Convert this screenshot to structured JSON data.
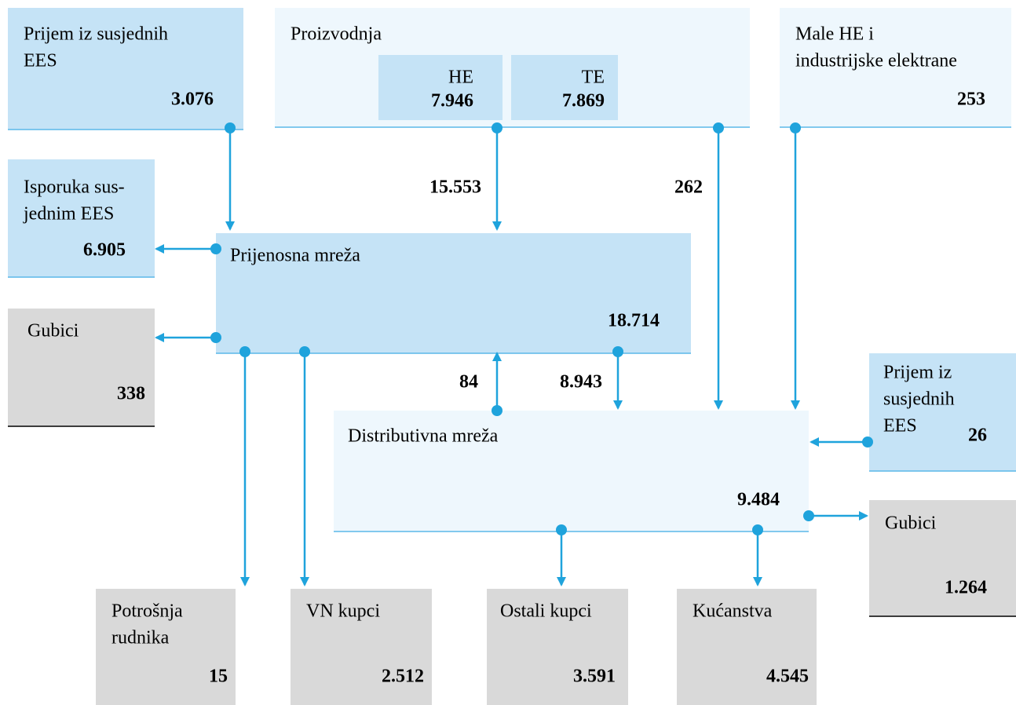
{
  "nodes": [
    {
      "lines": [
        "Prijem iz susjednih",
        "EES"
      ],
      "value": "3.076"
    },
    {
      "lines": [
        "Proizvodnja"
      ]
    },
    {
      "lines": [
        "HE"
      ],
      "value": "7.946"
    },
    {
      "lines": [
        "TE"
      ],
      "value": "7.869"
    },
    {
      "lines": [
        "Male HE i",
        "industrijske elektrane"
      ],
      "value": "253"
    },
    {
      "lines": [
        "Isporuka sus-",
        "jednim EES"
      ],
      "value": "6.905"
    },
    {
      "lines": [
        "Prijenosna mreža"
      ],
      "value": "18.714"
    },
    {
      "lines": [
        "Gubici"
      ],
      "value": "338"
    },
    {
      "lines": [
        "Distributivna mreža"
      ],
      "value": "9.484"
    },
    {
      "lines": [
        "Prijem iz",
        "susjednih",
        "EES"
      ],
      "value": "26"
    },
    {
      "lines": [
        "Gubici"
      ],
      "value": "1.264"
    },
    {
      "lines": [
        "Potrošnja",
        "rudnika"
      ],
      "value": "15"
    },
    {
      "lines": [
        "VN kupci"
      ],
      "value": "2.512"
    },
    {
      "lines": [
        "Ostali kupci"
      ],
      "value": "3.591"
    },
    {
      "lines": [
        "Kućanstva"
      ],
      "value": "4.545"
    }
  ],
  "flows": [
    "15.553",
    "262",
    "84",
    "8.943"
  ]
}
